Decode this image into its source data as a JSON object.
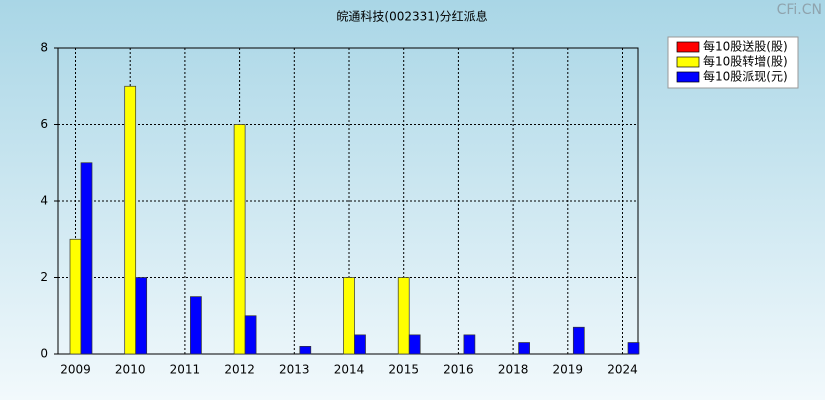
{
  "chart_data": {
    "type": "bar",
    "title": "皖通科技(002331)分红派息",
    "watermark": "CFi.CN",
    "categories": [
      "2009",
      "2010",
      "2011",
      "2012",
      "2013",
      "2014",
      "2015",
      "2016",
      "2018",
      "2019",
      "2024"
    ],
    "series": [
      {
        "name": "每10股送股(股)",
        "color": "#ff0000",
        "values": [
          0,
          0,
          0,
          0,
          0,
          0,
          0,
          0,
          0,
          0,
          0
        ]
      },
      {
        "name": "每10股转增(股)",
        "color": "#ffff00",
        "values": [
          3,
          7,
          0,
          6,
          0,
          2,
          2,
          0,
          0,
          0,
          0
        ]
      },
      {
        "name": "每10股派现(元)",
        "color": "#0000ff",
        "values": [
          5,
          2,
          1.5,
          1,
          0.2,
          0.5,
          0.5,
          0.5,
          0.3,
          0.7,
          0.3
        ]
      }
    ],
    "ylim": [
      0,
      8
    ],
    "yticks": [
      0,
      2,
      4,
      6,
      8
    ],
    "grid": true,
    "legend": "top-right"
  }
}
